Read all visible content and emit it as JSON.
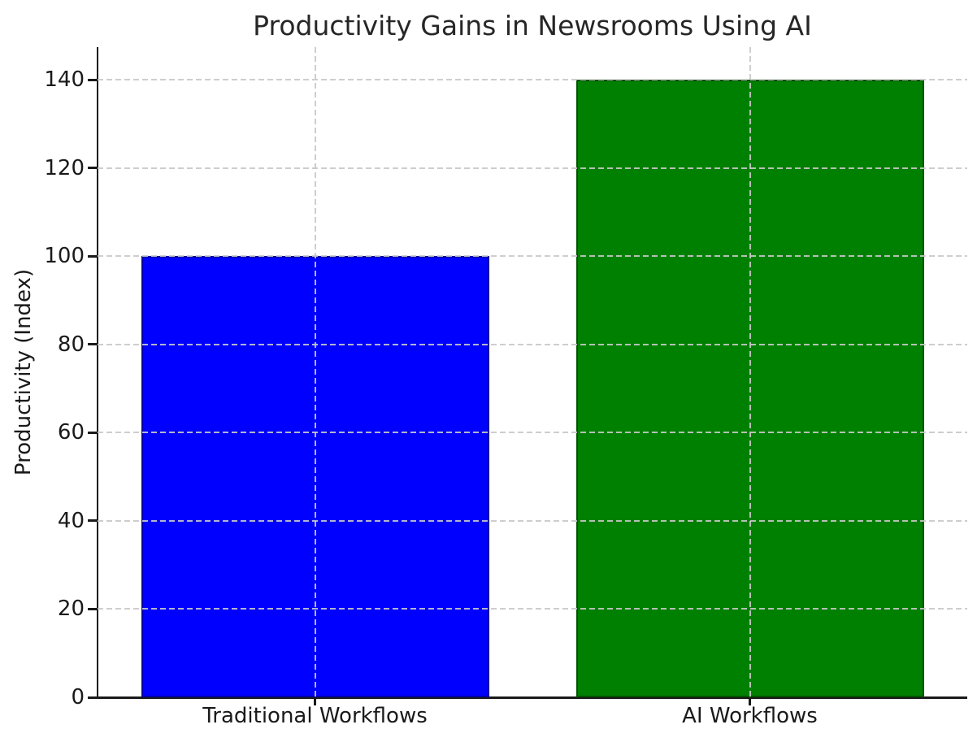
{
  "chart_data": {
    "type": "bar",
    "title": "Productivity Gains in Newsrooms Using AI",
    "xlabel": "",
    "ylabel": "Productivity (Index)",
    "categories": [
      "Traditional Workflows",
      "AI Workflows"
    ],
    "values": [
      100,
      140
    ],
    "bar_colors": [
      "#0000ff",
      "#008000"
    ],
    "yticks": [
      0,
      20,
      40,
      60,
      80,
      100,
      120,
      140
    ],
    "ytick_labels": [
      "0",
      "20",
      "40",
      "60",
      "80",
      "100",
      "120",
      "140"
    ],
    "ylim": [
      0,
      147
    ],
    "grid": "dashed, light gray, horizontal at each ytick and vertical at each bar center, drawn over bars",
    "legend": "none",
    "colors": {
      "background": "#ffffff",
      "axis": "#1a1a1a",
      "grid": "#c8c8c8",
      "title_text": "#262626",
      "bar_blue": "#0000ff",
      "bar_green": "#008000"
    }
  }
}
